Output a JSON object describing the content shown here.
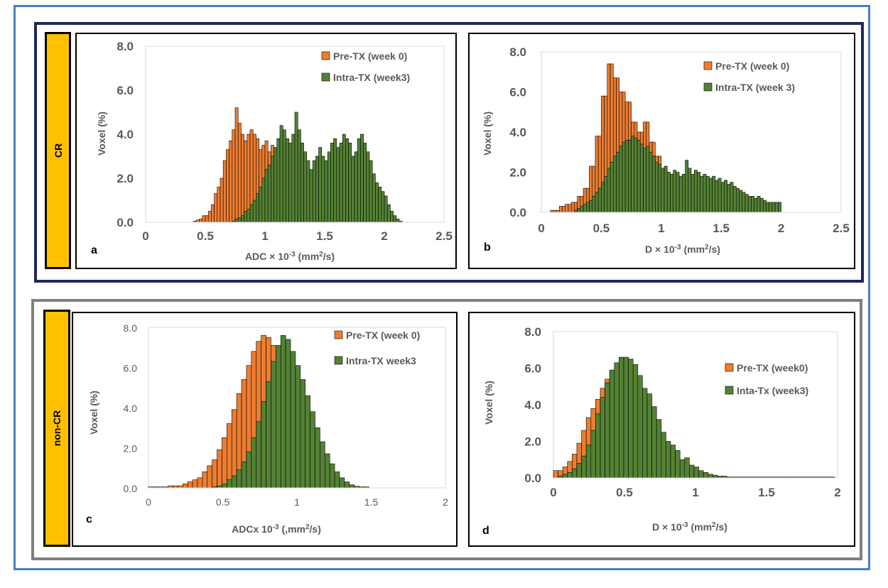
{
  "groups": {
    "top": {
      "label": "CR"
    },
    "bottom": {
      "label": "non-CR"
    }
  },
  "colors": {
    "pre": "#ed7d31",
    "intra": "#548235",
    "edge": "#000000",
    "top_border": "#1a2a57",
    "bottom_border": "#7f7f7f",
    "outer_border": "#4a7ebf",
    "label_fill": "#ffc000"
  },
  "chart_data": [
    {
      "id": "a",
      "panel_label": "a",
      "type": "bar",
      "xlabel": "ADC × 10-3 (mm2/s)",
      "ylabel": "Voxel (%)",
      "xlim": [
        0,
        2.5
      ],
      "ylim": [
        0,
        8
      ],
      "xticks": [
        "0",
        "0.5",
        "1",
        "1.5",
        "2",
        "2.5"
      ],
      "yticks": [
        "0.0",
        "2.0",
        "4.0",
        "6.0",
        "8.0"
      ],
      "bin_start": 0.0,
      "bin_width": 0.025,
      "legend_position": "top-right",
      "series": [
        {
          "name": "Pre-TX (week 0)",
          "values": [
            0,
            0,
            0,
            0,
            0,
            0,
            0,
            0,
            0,
            0,
            0,
            0,
            0,
            0,
            0,
            0,
            0.05,
            0.1,
            0.15,
            0.3,
            0.3,
            0.5,
            0.8,
            1.3,
            1.6,
            2.0,
            2.8,
            3.3,
            3.7,
            4.2,
            5.2,
            4.5,
            4.0,
            3.7,
            4.0,
            4.2,
            4.0,
            3.8,
            3.3,
            3.5,
            3.7,
            3.2,
            3.5,
            3.2,
            2.6,
            2.2,
            1.8,
            1.5,
            1.0,
            0.6,
            0.4,
            0.3,
            0.2,
            0.15,
            0.1,
            0.05,
            0.05,
            0,
            0,
            0,
            0,
            0,
            0,
            0,
            0,
            0,
            0,
            0,
            0,
            0,
            0,
            0,
            0,
            0,
            0,
            0,
            0,
            0,
            0,
            0,
            0,
            0,
            0,
            0,
            0,
            0,
            0,
            0,
            0,
            0,
            0,
            0,
            0,
            0,
            0,
            0,
            0,
            0,
            0,
            0
          ]
        },
        {
          "name": "Intra-TX (week3)",
          "values": [
            0,
            0,
            0,
            0,
            0,
            0,
            0,
            0,
            0,
            0,
            0,
            0,
            0,
            0,
            0,
            0,
            0,
            0,
            0,
            0,
            0,
            0,
            0,
            0,
            0,
            0,
            0,
            0,
            0,
            0.05,
            0.15,
            0.2,
            0.3,
            0.5,
            0.6,
            0.8,
            1.0,
            1.3,
            1.6,
            2.0,
            2.4,
            2.6,
            3.0,
            3.4,
            3.8,
            4.4,
            4.2,
            3.8,
            3.6,
            4.0,
            5.0,
            4.2,
            3.6,
            3.2,
            2.8,
            2.4,
            2.8,
            3.0,
            3.4,
            3.0,
            2.8,
            3.2,
            3.6,
            3.8,
            3.4,
            3.6,
            4.0,
            3.8,
            3.6,
            3.0,
            3.2,
            3.8,
            4.0,
            3.6,
            3.2,
            2.8,
            2.2,
            1.8,
            1.6,
            1.4,
            1.2,
            0.8,
            0.5,
            0.3,
            0.15,
            0.05,
            0,
            0,
            0,
            0,
            0,
            0,
            0,
            0,
            0,
            0,
            0,
            0,
            0,
            0
          ]
        }
      ]
    },
    {
      "id": "b",
      "panel_label": "b",
      "type": "bar",
      "xlabel": "D × 10-3 (mm2/s)",
      "ylabel": "Voxel (%)",
      "xlim": [
        0,
        2.5
      ],
      "ylim": [
        0,
        8
      ],
      "xticks": [
        "0",
        "0.5",
        "1",
        "1.5",
        "2",
        "2.5"
      ],
      "yticks": [
        "0.0",
        "2.0",
        "4.0",
        "6.0",
        "8.0"
      ],
      "bin_start": 0.0,
      "bin_width": 0.025,
      "legend_position": "top-right",
      "series": [
        {
          "name": "Pre-TX (week 0)",
          "values": [
            0,
            0,
            0,
            0.1,
            0.1,
            0.1,
            0.3,
            0.3,
            0.4,
            0.4,
            0.5,
            0.5,
            0.8,
            0.8,
            1.2,
            1.2,
            2.3,
            2.3,
            3.8,
            3.8,
            5.8,
            5.8,
            7.4,
            7.4,
            6.7,
            6.7,
            6.0,
            6.0,
            5.5,
            5.5,
            4.5,
            4.5,
            4.0,
            4.0,
            4.5,
            4.5,
            3.5,
            3.5,
            2.8,
            2.8,
            2.0,
            2.0,
            1.5,
            1.5,
            1.0,
            1.0,
            0.5,
            0.5,
            0.3,
            0.3,
            0.1,
            0.1,
            0,
            0,
            0,
            0,
            0,
            0,
            0,
            0,
            0,
            0,
            0,
            0,
            0,
            0,
            0,
            0,
            0,
            0,
            0,
            0,
            0,
            0,
            0,
            0,
            0,
            0,
            0,
            0,
            0,
            0,
            0,
            0,
            0,
            0,
            0,
            0,
            0,
            0,
            0,
            0,
            0,
            0,
            0,
            0,
            0,
            0,
            0,
            0
          ]
        },
        {
          "name": "Intra-TX (week 3)",
          "values": [
            0,
            0,
            0,
            0,
            0,
            0,
            0,
            0,
            0,
            0,
            0,
            0.1,
            0.2,
            0.3,
            0.4,
            0.5,
            0.6,
            0.8,
            1.0,
            1.2,
            1.5,
            1.8,
            2.2,
            2.5,
            2.8,
            3.0,
            3.3,
            3.5,
            3.6,
            3.6,
            3.8,
            3.7,
            3.6,
            3.4,
            3.2,
            3.3,
            3.0,
            2.8,
            2.5,
            2.4,
            2.2,
            2.3,
            2.0,
            1.9,
            2.1,
            2.0,
            1.8,
            1.9,
            2.6,
            2.2,
            1.9,
            2.1,
            2.0,
            1.8,
            1.9,
            1.8,
            1.7,
            1.8,
            1.6,
            1.7,
            1.5,
            1.6,
            1.4,
            1.5,
            1.3,
            1.2,
            1.1,
            1.0,
            0.9,
            0.8,
            0.8,
            0.7,
            0.8,
            0.7,
            0.6,
            0.5,
            0.5,
            0.5,
            0.5,
            0.5,
            0,
            0,
            0,
            0,
            0,
            0,
            0,
            0,
            0,
            0,
            0,
            0,
            0,
            0,
            0,
            0,
            0,
            0,
            0,
            0
          ]
        }
      ]
    },
    {
      "id": "c",
      "panel_label": "c",
      "type": "bar",
      "xlabel": "ADCx 10-3 (,mm2/s)",
      "ylabel": "Voxel (%)",
      "xlim": [
        0,
        2
      ],
      "ylim": [
        0,
        8
      ],
      "xticks": [
        "0",
        "0.5",
        "1",
        "1.5",
        "2"
      ],
      "yticks": [
        "0.0",
        "2.0",
        "4.0",
        "6.0",
        "8.0"
      ],
      "bin_start": 0.0,
      "bin_width": 0.033,
      "legend_position": "top-right",
      "series": [
        {
          "name": "Pre-TX (week 0)",
          "values": [
            0.05,
            0.05,
            0.05,
            0.05,
            0.1,
            0.1,
            0.1,
            0.2,
            0.3,
            0.4,
            0.5,
            0.8,
            1.1,
            1.4,
            1.9,
            2.5,
            3.2,
            3.9,
            4.7,
            5.4,
            6.1,
            6.8,
            7.3,
            7.6,
            7.5,
            7.1,
            6.6,
            5.9,
            5.1,
            4.3,
            3.5,
            2.7,
            2.0,
            1.4,
            0.9,
            0.5,
            0.3,
            0.1,
            0.05,
            0,
            0,
            0,
            0,
            0,
            0,
            0,
            0,
            0,
            0,
            0,
            0,
            0,
            0,
            0,
            0,
            0,
            0,
            0,
            0,
            0
          ]
        },
        {
          "name": "Intra-TX week3",
          "values": [
            0,
            0,
            0,
            0,
            0,
            0,
            0,
            0,
            0,
            0,
            0,
            0,
            0,
            0.05,
            0.1,
            0.2,
            0.4,
            0.6,
            0.9,
            1.3,
            1.8,
            2.5,
            3.3,
            4.3,
            5.3,
            6.3,
            7.1,
            7.6,
            7.4,
            6.8,
            6.1,
            5.4,
            4.6,
            3.8,
            3.0,
            2.3,
            1.7,
            1.2,
            0.8,
            0.5,
            0.3,
            0.15,
            0.08,
            0.05,
            0.05,
            0,
            0,
            0,
            0,
            0,
            0,
            0,
            0,
            0,
            0,
            0,
            0,
            0,
            0,
            0
          ]
        }
      ]
    },
    {
      "id": "d",
      "panel_label": "d",
      "type": "bar",
      "xlabel": "D × 10-3 (mm2/s)",
      "ylabel": "Voxel (%)",
      "xlim": [
        0,
        2
      ],
      "ylim": [
        0,
        8
      ],
      "xticks": [
        "0",
        "0.5",
        "1",
        "1.5",
        "2"
      ],
      "yticks": [
        "0.0",
        "2.0",
        "4.0",
        "6.0",
        "8.0"
      ],
      "bin_start": 0.0,
      "bin_width": 0.033,
      "legend_position": "right",
      "series": [
        {
          "name": "Pre-TX (week0)",
          "values": [
            0.4,
            0.4,
            0.6,
            0.9,
            1.3,
            1.9,
            2.6,
            3.3,
            3.8,
            4.3,
            4.9,
            5.4,
            5.8,
            6.1,
            6.3,
            6.2,
            5.8,
            5.3,
            4.7,
            4.1,
            3.4,
            2.8,
            2.2,
            1.7,
            1.3,
            0.9,
            0.6,
            0.4,
            0.3,
            0.2,
            0.1,
            0.05,
            0,
            0,
            0,
            0,
            0,
            0,
            0,
            0,
            0,
            0,
            0,
            0,
            0,
            0,
            0,
            0,
            0,
            0,
            0,
            0,
            0,
            0,
            0,
            0,
            0,
            0,
            0,
            0,
            0
          ]
        },
        {
          "name": "Inta-Tx (week3)",
          "values": [
            0,
            0.1,
            0.2,
            0.3,
            0.5,
            0.8,
            1.2,
            1.8,
            2.6,
            3.5,
            4.4,
            5.2,
            5.9,
            6.3,
            6.6,
            6.6,
            6.5,
            6.2,
            5.6,
            4.9,
            4.6,
            3.9,
            3.2,
            2.5,
            2.0,
            1.8,
            1.5,
            1.0,
            1.1,
            0.7,
            0.6,
            0.4,
            0.3,
            0.2,
            0.15,
            0.1,
            0.1,
            0.05,
            0.05,
            0.05,
            0.05,
            0.05,
            0.05,
            0.05,
            0.05,
            0.05,
            0.05,
            0.05,
            0.05,
            0.05,
            0.05,
            0.05,
            0.05,
            0.05,
            0.05,
            0.05,
            0.05,
            0.05,
            0.05,
            0.05
          ]
        }
      ]
    }
  ]
}
